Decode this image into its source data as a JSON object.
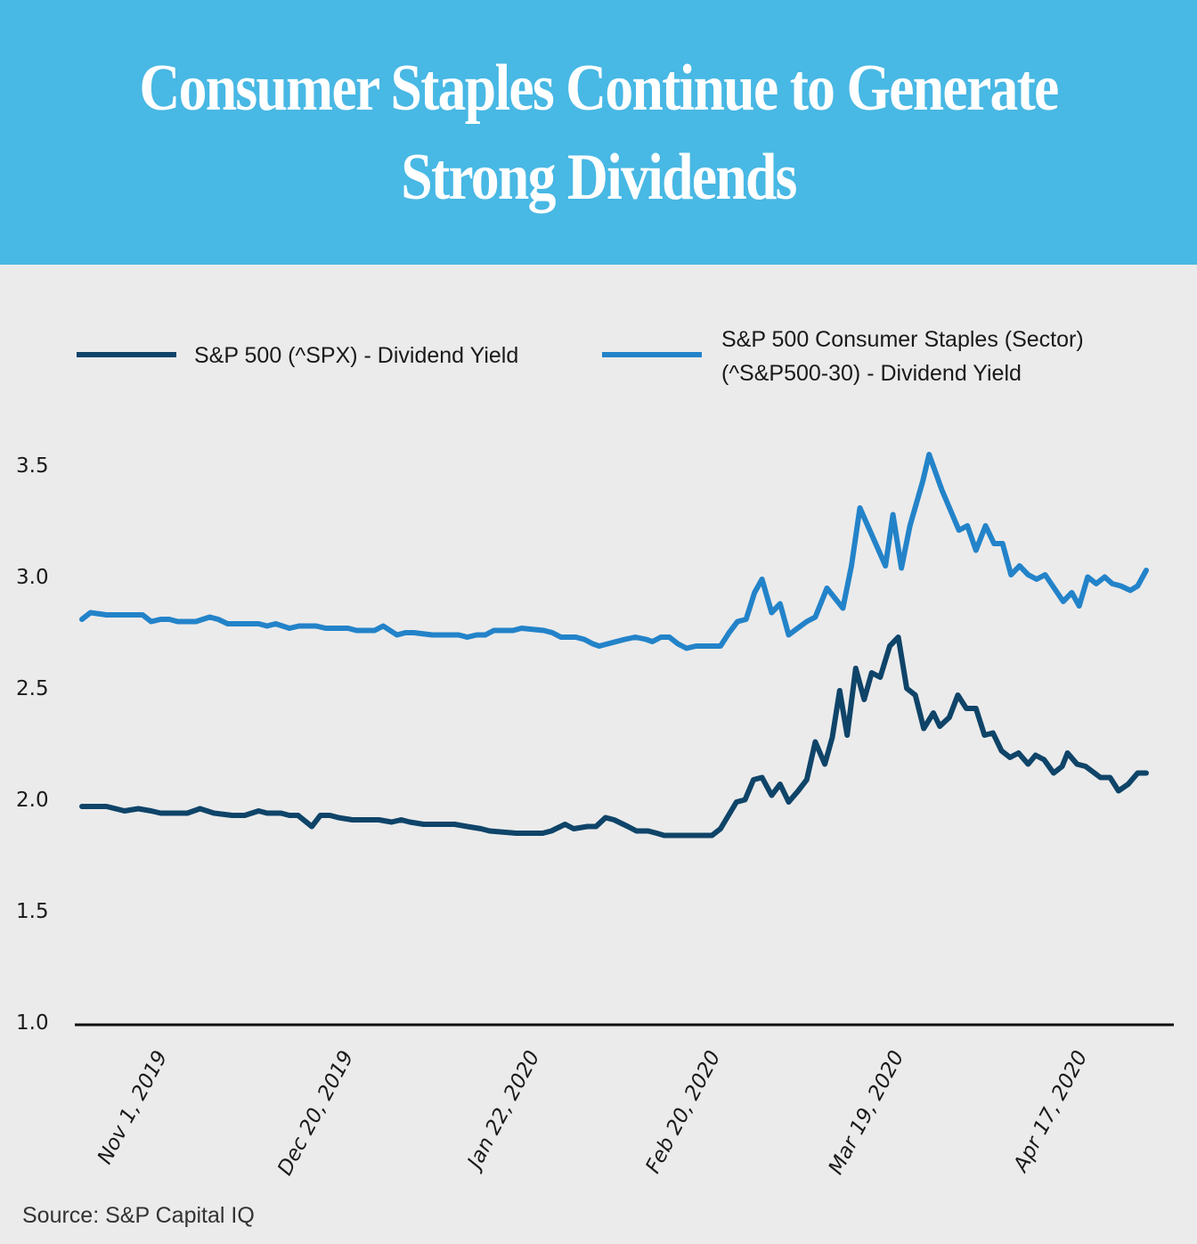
{
  "title": "Consumer Staples Continue to Generate Strong Dividends",
  "source": "Source: S&P Capital IQ",
  "colors": {
    "banner": "#48b8e4",
    "background": "#ebebeb",
    "spx": "#0f4469",
    "staples": "#2383c9",
    "axis": "#111111"
  },
  "legend": [
    {
      "label": "S&P 500 (^SPX) - Dividend Yield"
    },
    {
      "label_line1": "S&P 500 Consumer Staples (Sector)",
      "label_line2": "(^S&P500-30) - Dividend Yield"
    }
  ],
  "chart_data": {
    "type": "line",
    "title": "Consumer Staples Continue to Generate Strong Dividends",
    "xlabel": "",
    "ylabel": "",
    "ylim": [
      1.0,
      3.5
    ],
    "yticks": [
      "3.5",
      "3.0",
      "2.5",
      "2.0",
      "1.5",
      "1.0"
    ],
    "ytick_values": [
      3.5,
      3.0,
      2.5,
      2.0,
      1.5,
      1.0
    ],
    "xticks": [
      "Nov 1, 2019",
      "Dec 20, 2019",
      "Jan 22, 2020",
      "Feb 20, 2020",
      "Mar 19, 2020",
      "Apr 17, 2020"
    ],
    "xtick_positions": [
      0.07,
      0.245,
      0.42,
      0.59,
      0.762,
      0.935
    ],
    "grid": false,
    "legend_position": "top",
    "series": [
      {
        "name": "S&P 500 (^SPX) - Dividend Yield",
        "x": [
          0,
          0.023,
          0.04,
          0.053,
          0.065,
          0.074,
          0.099,
          0.111,
          0.124,
          0.141,
          0.153,
          0.166,
          0.174,
          0.187,
          0.195,
          0.203,
          0.216,
          0.224,
          0.233,
          0.241,
          0.254,
          0.266,
          0.279,
          0.291,
          0.3,
          0.308,
          0.321,
          0.333,
          0.341,
          0.35,
          0.362,
          0.375,
          0.383,
          0.408,
          0.425,
          0.433,
          0.441,
          0.454,
          0.462,
          0.475,
          0.483,
          0.492,
          0.5,
          0.513,
          0.521,
          0.532,
          0.54,
          0.547,
          0.57,
          0.592,
          0.6,
          0.615,
          0.623,
          0.631,
          0.639,
          0.648,
          0.656,
          0.664,
          0.673,
          0.681,
          0.689,
          0.698,
          0.705,
          0.712,
          0.719,
          0.727,
          0.735,
          0.742,
          0.75,
          0.759,
          0.767,
          0.775,
          0.783,
          0.791,
          0.8,
          0.806,
          0.815,
          0.823,
          0.831,
          0.84,
          0.848,
          0.856,
          0.864,
          0.872,
          0.88,
          0.889,
          0.896,
          0.904,
          0.913,
          0.921,
          0.926,
          0.935,
          0.943,
          0.957,
          0.966,
          0.974,
          0.983,
          0.992,
          1.0
        ],
        "values": [
          1.98,
          1.98,
          1.96,
          1.97,
          1.96,
          1.95,
          1.95,
          1.97,
          1.95,
          1.94,
          1.94,
          1.96,
          1.95,
          1.95,
          1.94,
          1.94,
          1.89,
          1.94,
          1.94,
          1.93,
          1.92,
          1.92,
          1.92,
          1.91,
          1.92,
          1.91,
          1.9,
          1.9,
          1.9,
          1.9,
          1.89,
          1.88,
          1.87,
          1.86,
          1.86,
          1.86,
          1.87,
          1.9,
          1.88,
          1.89,
          1.89,
          1.93,
          1.92,
          1.89,
          1.87,
          1.87,
          1.86,
          1.85,
          1.85,
          1.85,
          1.88,
          2.0,
          2.01,
          2.1,
          2.11,
          2.03,
          2.08,
          2.0,
          2.05,
          2.1,
          2.27,
          2.17,
          2.29,
          2.5,
          2.3,
          2.6,
          2.46,
          2.58,
          2.56,
          2.7,
          2.74,
          2.51,
          2.48,
          2.33,
          2.4,
          2.34,
          2.38,
          2.48,
          2.42,
          2.42,
          2.3,
          2.31,
          2.23,
          2.2,
          2.22,
          2.17,
          2.21,
          2.19,
          2.13,
          2.16,
          2.22,
          2.17,
          2.16,
          2.11,
          2.11,
          2.05,
          2.08,
          2.13,
          2.13
        ]
      },
      {
        "name": "S&P 500 Consumer Staples (Sector) (^S&P500-30) - Dividend Yield",
        "x": [
          0,
          0.008,
          0.023,
          0.032,
          0.057,
          0.065,
          0.074,
          0.082,
          0.09,
          0.107,
          0.12,
          0.128,
          0.137,
          0.166,
          0.174,
          0.182,
          0.195,
          0.204,
          0.22,
          0.229,
          0.25,
          0.258,
          0.275,
          0.283,
          0.296,
          0.304,
          0.312,
          0.329,
          0.346,
          0.354,
          0.362,
          0.371,
          0.379,
          0.387,
          0.405,
          0.413,
          0.434,
          0.442,
          0.45,
          0.464,
          0.472,
          0.48,
          0.486,
          0.494,
          0.51,
          0.52,
          0.53,
          0.536,
          0.544,
          0.552,
          0.56,
          0.568,
          0.577,
          0.6,
          0.608,
          0.616,
          0.624,
          0.632,
          0.639,
          0.648,
          0.656,
          0.664,
          0.681,
          0.689,
          0.7,
          0.715,
          0.723,
          0.731,
          0.755,
          0.762,
          0.77,
          0.778,
          0.79,
          0.796,
          0.808,
          0.824,
          0.832,
          0.84,
          0.849,
          0.857,
          0.865,
          0.873,
          0.881,
          0.889,
          0.897,
          0.905,
          0.922,
          0.93,
          0.937,
          0.945,
          0.953,
          0.961,
          0.968,
          0.976,
          0.985,
          0.992,
          1.0
        ],
        "values": [
          2.82,
          2.85,
          2.84,
          2.84,
          2.84,
          2.81,
          2.82,
          2.82,
          2.81,
          2.81,
          2.83,
          2.82,
          2.8,
          2.8,
          2.79,
          2.8,
          2.78,
          2.79,
          2.79,
          2.78,
          2.78,
          2.77,
          2.77,
          2.79,
          2.75,
          2.76,
          2.76,
          2.75,
          2.75,
          2.75,
          2.74,
          2.75,
          2.75,
          2.77,
          2.77,
          2.78,
          2.77,
          2.76,
          2.74,
          2.74,
          2.73,
          2.71,
          2.7,
          2.71,
          2.73,
          2.74,
          2.73,
          2.72,
          2.74,
          2.74,
          2.71,
          2.69,
          2.7,
          2.7,
          2.76,
          2.81,
          2.82,
          2.94,
          3.0,
          2.85,
          2.89,
          2.75,
          2.81,
          2.83,
          2.96,
          2.87,
          3.06,
          3.32,
          3.06,
          3.29,
          3.05,
          3.24,
          3.44,
          3.56,
          3.4,
          3.22,
          3.24,
          3.13,
          3.24,
          3.16,
          3.16,
          3.02,
          3.06,
          3.02,
          3.0,
          3.02,
          2.9,
          2.94,
          2.88,
          3.01,
          2.98,
          3.01,
          2.98,
          2.97,
          2.95,
          2.97,
          3.04
        ]
      }
    ]
  }
}
